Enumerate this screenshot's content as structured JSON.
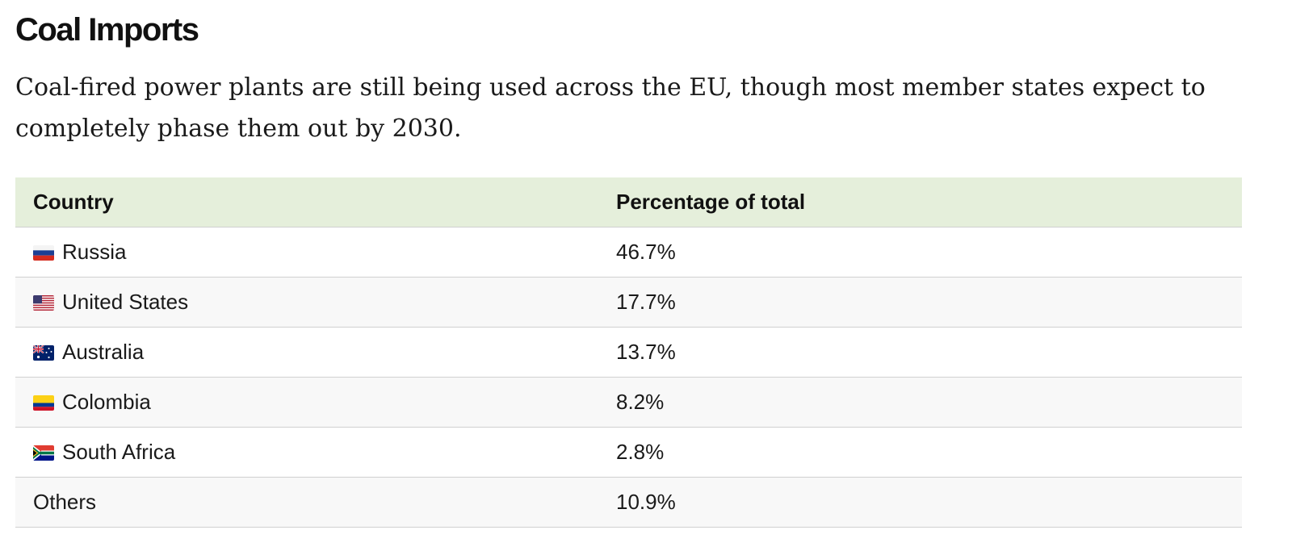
{
  "heading": {
    "title": "Coal Imports",
    "description": "Coal-fired power plants are still being used across the EU, though most member states expect to completely phase them out by 2030."
  },
  "table": {
    "headers": {
      "country": "Country",
      "percentage": "Percentage of total"
    },
    "rows": [
      {
        "country": "Russia",
        "percentage": "46.7%",
        "flag": "russia-flag-icon"
      },
      {
        "country": "United States",
        "percentage": "17.7%",
        "flag": "usa-flag-icon"
      },
      {
        "country": "Australia",
        "percentage": "13.7%",
        "flag": "australia-flag-icon"
      },
      {
        "country": "Colombia",
        "percentage": "8.2%",
        "flag": "colombia-flag-icon"
      },
      {
        "country": "South Africa",
        "percentage": "2.8%",
        "flag": "south-africa-flag-icon"
      },
      {
        "country": "Others",
        "percentage": "10.9%",
        "flag": ""
      }
    ]
  },
  "colors": {
    "header_background": "#e5efdb",
    "row_alt_background": "#f8f8f8",
    "row_border": "#d0d0d0"
  }
}
